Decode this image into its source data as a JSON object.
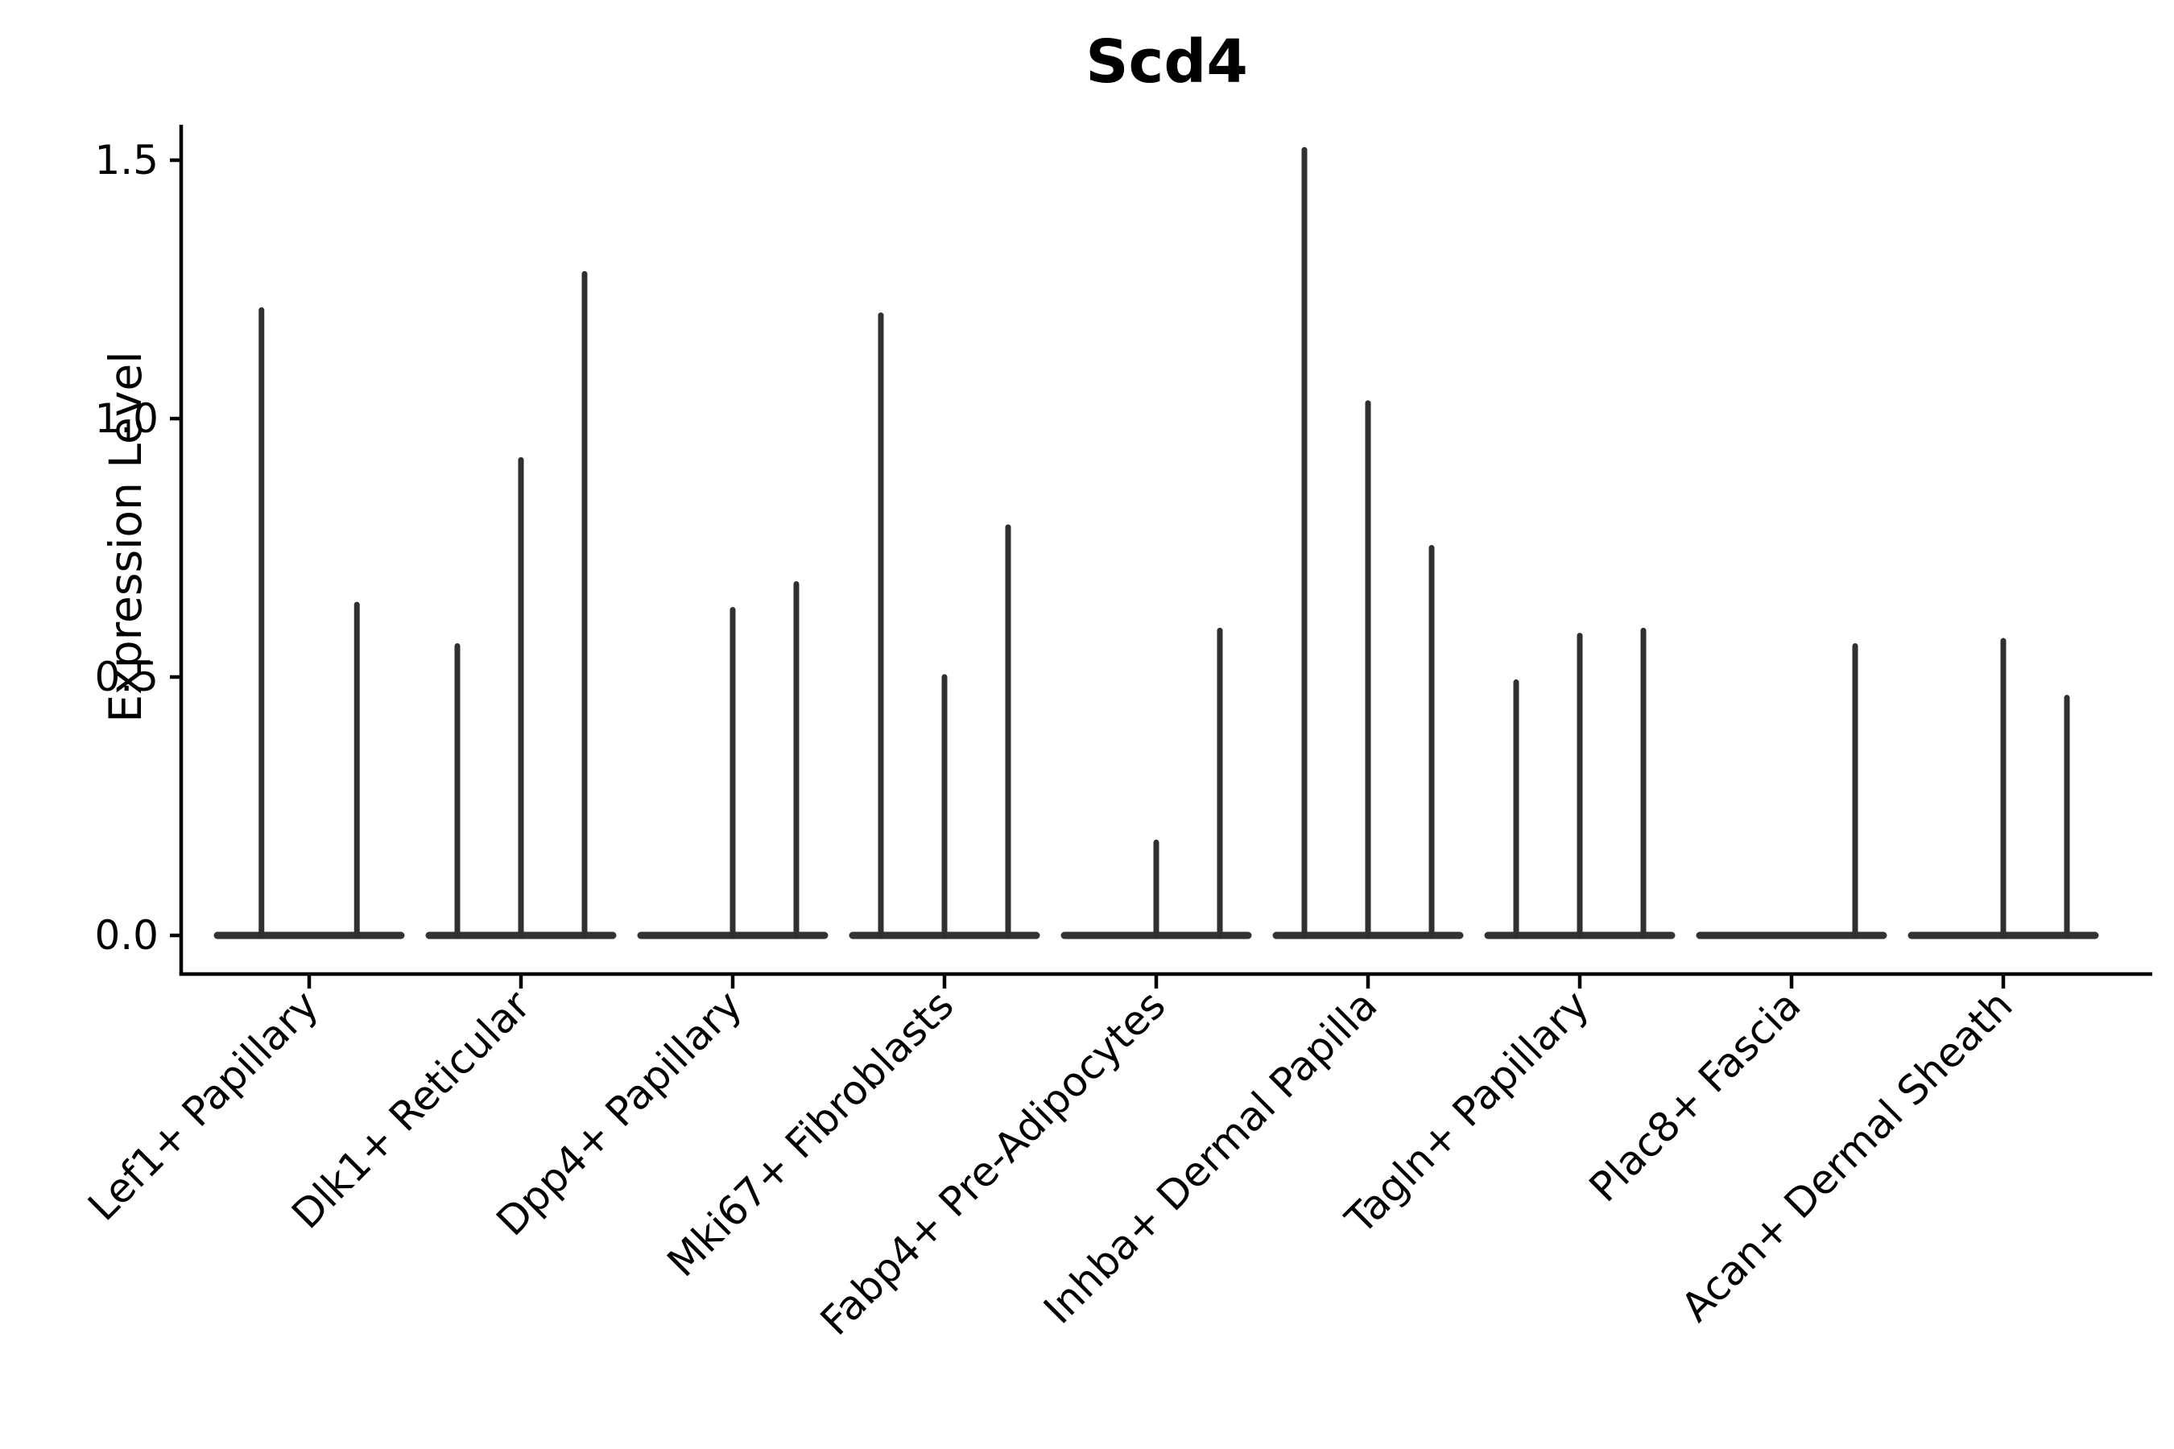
{
  "chart_data": {
    "type": "violin",
    "title": "Scd4",
    "ylabel": "Expression Level",
    "xlabel": "",
    "yticks": [
      0.0,
      0.5,
      1.0,
      1.5
    ],
    "ylim": [
      0,
      1.57
    ],
    "grid": false,
    "legend": "none",
    "categories": [
      "Lef1+ Papillary",
      "Dlk1+ Reticular",
      "Dpp4+ Papillary",
      "Mki67+ Fibroblasts",
      "Fabp4+ Pre-Adipocytes",
      "Inhba+ Dermal Papilla",
      "Tagln+ Papillary",
      "Plac8+ Fascia",
      "Acan+ Dermal Sheath"
    ],
    "series_note": "Each category holds 1-3 thin spike-like violins; values are the max expression (spike top). 0 = violin present but flat at baseline.",
    "violins": [
      {
        "category": "Lef1+ Papillary",
        "group_maxima": [
          1.21,
          0.64
        ]
      },
      {
        "category": "Dlk1+ Reticular",
        "group_maxima": [
          0.56,
          0.92,
          1.28
        ]
      },
      {
        "category": "Dpp4+ Papillary",
        "group_maxima": [
          0.0,
          0.63,
          0.68
        ]
      },
      {
        "category": "Mki67+ Fibroblasts",
        "group_maxima": [
          1.2,
          0.5,
          0.79
        ]
      },
      {
        "category": "Fabp4+ Pre-Adipocytes",
        "group_maxima": [
          0.0,
          0.18,
          0.59
        ]
      },
      {
        "category": "Inhba+ Dermal Papilla",
        "group_maxima": [
          1.52,
          1.03,
          0.75
        ]
      },
      {
        "category": "Tagln+ Papillary",
        "group_maxima": [
          0.49,
          0.58,
          0.59
        ]
      },
      {
        "category": "Plac8+ Fascia",
        "group_maxima": [
          0.0,
          0.0,
          0.56
        ]
      },
      {
        "category": "Acan+ Dermal Sheath",
        "group_maxima": [
          0.0,
          0.57,
          0.46
        ]
      }
    ],
    "colors": {
      "violin": "#303030",
      "violin_base": "#333333",
      "axis": "#000000",
      "text": "#000000",
      "background": "#ffffff"
    }
  }
}
